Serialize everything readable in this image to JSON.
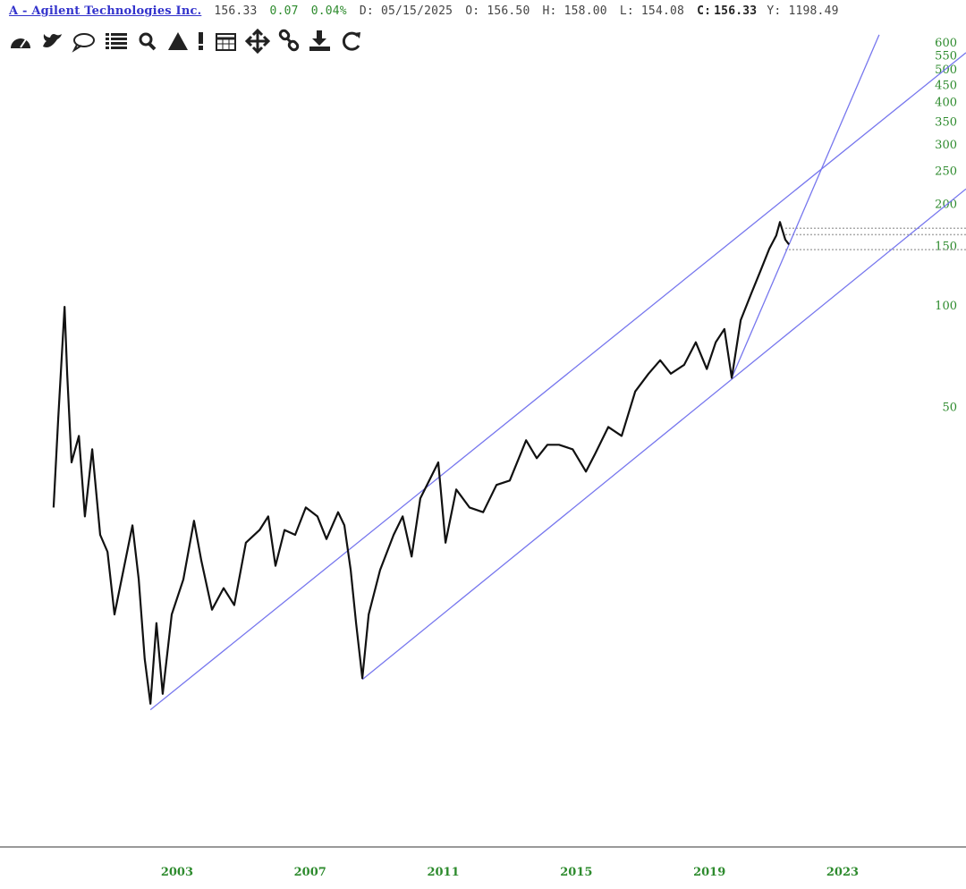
{
  "header": {
    "symbol": "A - Agilent Technologies Inc.",
    "last": "156.33",
    "change": "0.07",
    "change_pct": "0.04%",
    "date": "D: 05/15/2025",
    "open": "O: 156.50",
    "high": "H: 158.00",
    "low": "L: 154.08",
    "close_label": "C:",
    "close": "156.33",
    "y": "Y: 1198.49"
  },
  "chart_data": {
    "type": "line",
    "color": "#111111",
    "log_y": true,
    "x": [
      1999.29,
      1999.43,
      1999.62,
      1999.7,
      1999.83,
      2000.05,
      2000.23,
      2000.45,
      2000.69,
      2000.91,
      2001.12,
      2001.39,
      2001.66,
      2001.85,
      2002.03,
      2002.2,
      2002.38,
      2002.57,
      2002.84,
      2003.19,
      2003.51,
      2003.73,
      2004.05,
      2004.4,
      2004.72,
      2005.07,
      2005.48,
      2005.74,
      2005.96,
      2006.23,
      2006.55,
      2006.87,
      2007.22,
      2007.49,
      2007.84,
      2008.03,
      2008.22,
      2008.38,
      2008.57,
      2008.76,
      2009.1,
      2009.51,
      2009.78,
      2010.05,
      2010.31,
      2010.58,
      2010.85,
      2011.07,
      2011.39,
      2011.79,
      2012.2,
      2012.6,
      2013.0,
      2013.49,
      2013.81,
      2014.13,
      2014.48,
      2014.89,
      2015.29,
      2015.56,
      2015.96,
      2016.36,
      2016.77,
      2017.17,
      2017.52,
      2017.84,
      2018.24,
      2018.59,
      2018.92,
      2019.19,
      2019.45,
      2019.67,
      2019.94,
      2020.26,
      2020.53,
      2020.8,
      2021.01,
      2021.12,
      2021.28,
      2021.39
    ],
    "values": [
      25.3,
      46.4,
      99.3,
      63,
      34.4,
      41.2,
      23.8,
      37.6,
      21,
      18.7,
      12.2,
      16.5,
      22.4,
      15.5,
      9.0,
      6.64,
      11.5,
      7.1,
      12.2,
      15.5,
      23.1,
      17.6,
      12.6,
      14.6,
      13,
      19.9,
      21.7,
      23.8,
      17,
      21.7,
      21,
      25.3,
      23.8,
      20.4,
      24.5,
      22.4,
      16.5,
      11.5,
      7.9,
      12.2,
      16.5,
      21,
      23.8,
      18.1,
      26.9,
      30.4,
      34.4,
      19.9,
      28.6,
      25.3,
      24.5,
      29.5,
      30.4,
      40,
      35.4,
      38.8,
      38.8,
      37.6,
      32.3,
      36.4,
      43.8,
      41.2,
      55.8,
      63,
      69,
      63,
      66.9,
      78,
      65,
      78,
      85.4,
      61.2,
      90.7,
      108.9,
      126.7,
      147.6,
      161.7,
      177,
      157,
      152
    ],
    "trendline_color": "#7777ee",
    "trendlines": [
      {
        "x": [
          2002.2,
          2026.71
        ],
        "y": [
          6.37,
          562
        ]
      },
      {
        "x": [
          2008.57,
          2026.71
        ],
        "y": [
          7.83,
          222
        ]
      },
      {
        "x": [
          2019.67,
          2024.1
        ],
        "y": [
          61.2,
          635
        ]
      }
    ],
    "levels": [
      169.7,
      162.5,
      146.7
    ],
    "level_start": 2021.28,
    "level_color": "#aaaaaa",
    "xlim": [
      1997.68,
      2026.71
    ],
    "xticks": [
      2003,
      2007,
      2011,
      2015,
      2019,
      2023
    ],
    "ylim": [
      2.5,
      650
    ],
    "yticks": [
      50,
      100,
      150,
      200,
      250,
      300,
      350,
      400,
      450,
      500,
      550,
      600
    ]
  }
}
